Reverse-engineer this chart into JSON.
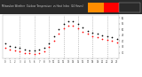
{
  "title_left": "Milwaukee Weather  Outdoor Temperature",
  "title_right": "vs Heat Index  (24 Hours)",
  "plot_bg": "#ffffff",
  "fig_bg": "#ffffff",
  "title_bg": "#2a2a2a",
  "title_fg": "#cccccc",
  "grid_color": "#999999",
  "temp_color": "#000000",
  "heat_color": "#ff0000",
  "legend_orange": "#ff8c00",
  "legend_red": "#ff0000",
  "hours": [
    0,
    1,
    2,
    3,
    4,
    5,
    6,
    7,
    8,
    9,
    10,
    11,
    12,
    13,
    14,
    15,
    16,
    17,
    18,
    19,
    20,
    21,
    22,
    23
  ],
  "temp_vals": [
    38,
    36,
    35,
    34,
    33,
    32,
    32,
    33,
    34,
    38,
    44,
    50,
    55,
    57,
    57,
    55,
    52,
    49,
    47,
    46,
    45,
    44,
    43,
    42
  ],
  "heat_vals": [
    34,
    33,
    32,
    31,
    30,
    30,
    29,
    30,
    31,
    35,
    40,
    46,
    51,
    53,
    53,
    51,
    48,
    46,
    44,
    43,
    42,
    41,
    40,
    39
  ],
  "ylim": [
    25,
    62
  ],
  "ytick_vals": [
    30,
    35,
    40,
    45,
    50,
    55,
    60
  ],
  "ytick_labels": [
    "30",
    "35",
    "40",
    "45",
    "50",
    "55",
    "60"
  ],
  "xlim": [
    -0.5,
    23.5
  ],
  "xticks": [
    0,
    1,
    2,
    3,
    4,
    5,
    6,
    7,
    8,
    9,
    10,
    11,
    12,
    13,
    14,
    15,
    16,
    17,
    18,
    19,
    20,
    21,
    22,
    23
  ],
  "grid_hours": [
    3,
    6,
    9,
    12,
    15,
    18,
    21
  ],
  "dot_size": 1.5
}
